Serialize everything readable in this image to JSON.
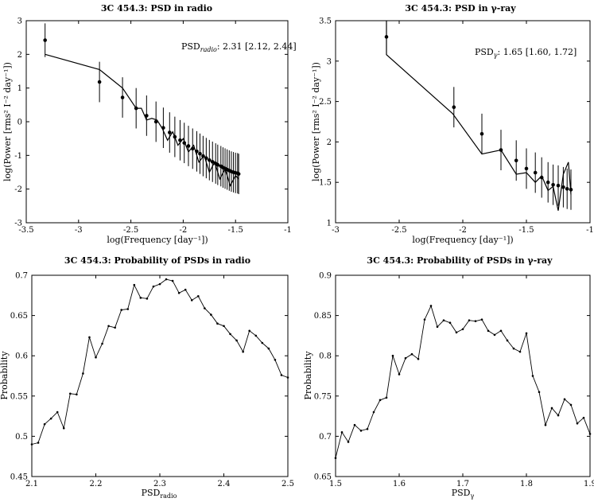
{
  "chart_data": [
    {
      "type": "line",
      "title": "3C 454.3: PSD in radio",
      "xlabel": "log(Frequency [day⁻¹])",
      "ylabel": "log(Power [rms² I⁻² day⁻¹])",
      "xlim": [
        -3.5,
        -1
      ],
      "ylim": [
        -3,
        3
      ],
      "xticks": [
        -3.5,
        -3,
        -2.5,
        -2,
        -1.5,
        -1
      ],
      "yticks": [
        -3,
        -2,
        -1,
        0,
        1,
        2,
        3
      ],
      "xtick_labels": [
        "-3.5",
        "-3",
        "-2.5",
        "-2",
        "-1.5",
        "-1"
      ],
      "ytick_labels": [
        "-3",
        "-2",
        "-1",
        "0",
        "1",
        "2",
        "3"
      ],
      "annotation": {
        "prefix": "PSD",
        "subscript": "radio",
        "text": ": 2.31 [2.12, 2.44]"
      },
      "model_line": {
        "x": [
          -3.32,
          -2.8,
          -2.58,
          -2.45,
          -2.4,
          -2.35,
          -2.3,
          -2.25,
          -2.2,
          -2.15,
          -2.1,
          -2.05,
          -2.0,
          -1.95,
          -1.9,
          -1.85,
          -1.8,
          -1.75,
          -1.7,
          -1.65,
          -1.6,
          -1.55,
          -1.5,
          -1.47
        ],
        "y": [
          2.0,
          1.55,
          1.0,
          0.4,
          0.4,
          0.05,
          0.1,
          0.05,
          -0.2,
          -0.55,
          -0.3,
          -0.7,
          -0.5,
          -0.9,
          -0.7,
          -1.2,
          -1.0,
          -1.5,
          -1.2,
          -1.7,
          -1.4,
          -1.9,
          -1.6,
          -1.7
        ]
      },
      "points": {
        "x": [
          -3.32,
          -2.8,
          -2.58,
          -2.45,
          -2.35,
          -2.26,
          -2.19,
          -2.13,
          -2.08,
          -2.03,
          -1.99,
          -1.95,
          -1.91,
          -1.87,
          -1.84,
          -1.81,
          -1.78,
          -1.75,
          -1.72,
          -1.69,
          -1.67,
          -1.64,
          -1.62,
          -1.6,
          -1.58,
          -1.56,
          -1.54,
          -1.52,
          -1.5,
          -1.48,
          -1.47
        ],
        "y": [
          2.42,
          1.18,
          0.72,
          0.4,
          0.18,
          0.0,
          -0.18,
          -0.32,
          -0.45,
          -0.55,
          -0.63,
          -0.72,
          -0.8,
          -0.88,
          -0.95,
          -1.02,
          -1.08,
          -1.14,
          -1.19,
          -1.24,
          -1.28,
          -1.32,
          -1.36,
          -1.39,
          -1.42,
          -1.45,
          -1.48,
          -1.5,
          -1.52,
          -1.53,
          -1.55
        ],
        "err": [
          0.5,
          0.6,
          0.6,
          0.6,
          0.6,
          0.6,
          0.6,
          0.6,
          0.6,
          0.6,
          0.6,
          0.6,
          0.6,
          0.6,
          0.6,
          0.6,
          0.6,
          0.6,
          0.6,
          0.6,
          0.6,
          0.6,
          0.6,
          0.6,
          0.6,
          0.6,
          0.6,
          0.6,
          0.6,
          0.6,
          0.6
        ]
      }
    },
    {
      "type": "line",
      "title": "3C 454.3: PSD in γ-ray",
      "xlabel": "log(Frequency [day⁻¹])",
      "ylabel": "log(Power [rms² I⁻² day⁻¹])",
      "xlim": [
        -3,
        -1
      ],
      "ylim": [
        1,
        3.5
      ],
      "xticks": [
        -3,
        -2.5,
        -2,
        -1.5,
        -1
      ],
      "yticks": [
        1,
        1.5,
        2,
        2.5,
        3,
        3.5
      ],
      "xtick_labels": [
        "-3",
        "-2.5",
        "-2",
        "-1.5",
        "-1"
      ],
      "ytick_labels": [
        "1",
        "1.5",
        "2",
        "2.5",
        "3",
        "3.5"
      ],
      "annotation": {
        "prefix": "PSD",
        "subscript": "γ",
        "text": ": 1.65 [1.60, 1.72]"
      },
      "model_line": {
        "x": [
          -2.6,
          -2.6,
          -2.08,
          -1.85,
          -1.7,
          -1.58,
          -1.5,
          -1.43,
          -1.38,
          -1.33,
          -1.29,
          -1.25,
          -1.21,
          -1.17,
          -1.15
        ],
        "y": [
          3.5,
          3.08,
          2.35,
          1.85,
          1.9,
          1.6,
          1.62,
          1.5,
          1.58,
          1.4,
          1.45,
          1.15,
          1.6,
          1.75,
          1.35
        ]
      },
      "points": {
        "x": [
          -2.6,
          -2.07,
          -1.85,
          -1.7,
          -1.58,
          -1.5,
          -1.43,
          -1.38,
          -1.33,
          -1.29,
          -1.25,
          -1.21,
          -1.18,
          -1.15
        ],
        "y": [
          3.3,
          2.43,
          2.1,
          1.9,
          1.77,
          1.67,
          1.62,
          1.56,
          1.5,
          1.47,
          1.46,
          1.44,
          1.42,
          1.41
        ],
        "err": [
          0.22,
          0.25,
          0.25,
          0.25,
          0.25,
          0.25,
          0.25,
          0.25,
          0.25,
          0.25,
          0.25,
          0.25,
          0.25,
          0.25
        ]
      }
    },
    {
      "type": "line",
      "title": "3C 454.3: Probability of PSDs in radio",
      "xlabel_prefix": "PSD",
      "xlabel_sub": "radio",
      "ylabel": "Probability",
      "xlim": [
        2.1,
        2.5
      ],
      "ylim": [
        0.45,
        0.7
      ],
      "xticks": [
        2.1,
        2.2,
        2.3,
        2.4,
        2.5
      ],
      "yticks": [
        0.45,
        0.5,
        0.55,
        0.6,
        0.65,
        0.7
      ],
      "xtick_labels": [
        "2.1",
        "2.2",
        "2.3",
        "2.4",
        "2.5"
      ],
      "ytick_labels": [
        "0.45",
        "0.5",
        "0.55",
        "0.6",
        "0.65",
        "0.7"
      ],
      "x": [
        2.1,
        2.11,
        2.12,
        2.13,
        2.14,
        2.15,
        2.16,
        2.17,
        2.18,
        2.19,
        2.2,
        2.21,
        2.22,
        2.23,
        2.24,
        2.25,
        2.26,
        2.27,
        2.28,
        2.29,
        2.3,
        2.31,
        2.32,
        2.33,
        2.34,
        2.35,
        2.36,
        2.37,
        2.38,
        2.39,
        2.4,
        2.41,
        2.42,
        2.43,
        2.44,
        2.45,
        2.46,
        2.47,
        2.48,
        2.49,
        2.5
      ],
      "y": [
        0.49,
        0.492,
        0.515,
        0.522,
        0.53,
        0.51,
        0.553,
        0.552,
        0.578,
        0.623,
        0.598,
        0.615,
        0.637,
        0.635,
        0.657,
        0.658,
        0.688,
        0.672,
        0.671,
        0.686,
        0.689,
        0.695,
        0.693,
        0.678,
        0.682,
        0.669,
        0.674,
        0.659,
        0.651,
        0.64,
        0.637,
        0.627,
        0.619,
        0.605,
        0.631,
        0.625,
        0.616,
        0.609,
        0.595,
        0.576,
        0.573
      ]
    },
    {
      "type": "line",
      "title": "3C 454.3: Probability of PSDs in γ-ray",
      "xlabel_prefix": "PSD",
      "xlabel_sub": "γ",
      "ylabel": "Probability",
      "xlim": [
        1.5,
        1.9
      ],
      "ylim": [
        0.65,
        0.9
      ],
      "xticks": [
        1.5,
        1.6,
        1.7,
        1.8,
        1.9
      ],
      "yticks": [
        0.65,
        0.7,
        0.75,
        0.8,
        0.85,
        0.9
      ],
      "xtick_labels": [
        "1.5",
        "1.6",
        "1.7",
        "1.8",
        "1.9"
      ],
      "ytick_labels": [
        "0.65",
        "0.7",
        "0.75",
        "0.8",
        "0.85",
        "0.9"
      ],
      "x": [
        1.5,
        1.51,
        1.52,
        1.53,
        1.54,
        1.55,
        1.56,
        1.57,
        1.58,
        1.59,
        1.6,
        1.61,
        1.62,
        1.63,
        1.64,
        1.65,
        1.66,
        1.67,
        1.68,
        1.69,
        1.7,
        1.71,
        1.72,
        1.73,
        1.74,
        1.75,
        1.76,
        1.77,
        1.78,
        1.79,
        1.8,
        1.81,
        1.82,
        1.83,
        1.84,
        1.85,
        1.86,
        1.87,
        1.88,
        1.89,
        1.9
      ],
      "y": [
        0.673,
        0.705,
        0.693,
        0.714,
        0.707,
        0.709,
        0.73,
        0.745,
        0.748,
        0.8,
        0.777,
        0.797,
        0.802,
        0.796,
        0.845,
        0.862,
        0.836,
        0.844,
        0.841,
        0.829,
        0.833,
        0.844,
        0.843,
        0.845,
        0.831,
        0.826,
        0.831,
        0.819,
        0.809,
        0.805,
        0.828,
        0.775,
        0.755,
        0.714,
        0.735,
        0.726,
        0.746,
        0.739,
        0.716,
        0.723,
        0.703
      ]
    }
  ]
}
